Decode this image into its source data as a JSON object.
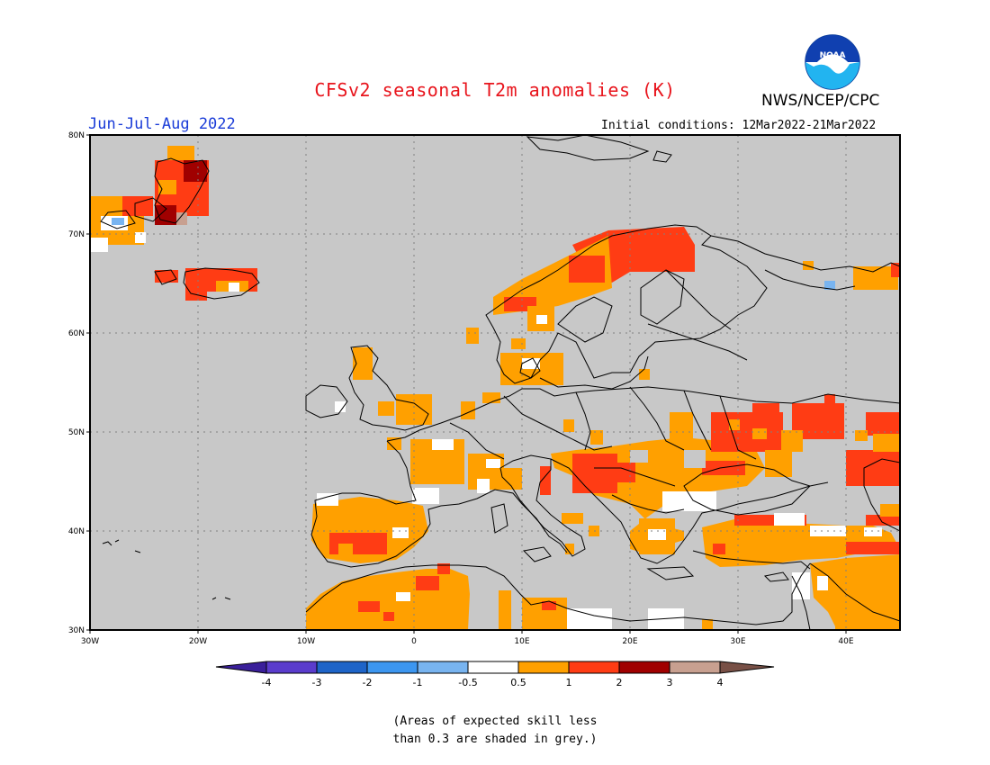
{
  "header": {
    "title": "CFSv2 seasonal T2m anomalies (K)",
    "agency": "NWS/NCEP/CPC",
    "season": "Jun-Jul-Aug 2022",
    "initial_conditions": "Initial conditions: 12Mar2022-21Mar2022",
    "logo_text": "NOAA"
  },
  "map": {
    "lon_range": [
      -30,
      45
    ],
    "lat_range": [
      30,
      80
    ],
    "lat_ticks": [
      "30N",
      "40N",
      "50N",
      "60N",
      "70N",
      "80N"
    ],
    "lon_ticks": [
      "30W",
      "20W",
      "10W",
      "0",
      "10E",
      "20E",
      "30E",
      "40E"
    ],
    "background_color": "#c8c8c8",
    "anomaly_regions": [
      {
        "name": "svalbard",
        "level": "1-2",
        "bbox_lonlat": [
          -24,
          70,
          -20,
          78
        ],
        "cells": [
          [
            -23,
            77,
            "#ff3c14"
          ],
          [
            -22,
            76,
            "#a00000"
          ],
          [
            -21,
            77,
            "#a00000"
          ],
          [
            -22,
            74,
            "#ff3c14"
          ],
          [
            -20,
            75,
            "#ff3c14"
          ],
          [
            -24,
            73,
            "#ffa000"
          ],
          [
            -21,
            72,
            "#ff3c14"
          ],
          [
            -20,
            71,
            "#a00000"
          ],
          [
            -23,
            72,
            "#ff3c14"
          ]
        ]
      },
      {
        "name": "east-greenland",
        "level": "0.5-1"
      },
      {
        "name": "iceland",
        "level": "1-2"
      },
      {
        "name": "scandinavia-north",
        "level": "1-2"
      },
      {
        "name": "iberia",
        "level": "0.5-1"
      },
      {
        "name": "north-africa",
        "level": "0.5-1"
      },
      {
        "name": "balkans",
        "level": "0.5-2"
      },
      {
        "name": "ukraine-russia",
        "level": "1-2"
      },
      {
        "name": "turkey",
        "level": "0.5-2"
      },
      {
        "name": "middle-east",
        "level": "0.5-1"
      }
    ]
  },
  "colorbar": {
    "labels": [
      "-4",
      "-3",
      "-2",
      "-1",
      "-0.5",
      "0.5",
      "1",
      "2",
      "3",
      "4"
    ],
    "colors": [
      "#3a1f9a",
      "#5a3ccc",
      "#1e64c8",
      "#3c96f0",
      "#78b4f0",
      "#ffffff",
      "#ffa000",
      "#ff3c14",
      "#a00000",
      "#c8a090",
      "#785046"
    ]
  },
  "footnote": {
    "line1": "(Areas of expected skill less",
    "line2": "than 0.3 are shaded in grey.)"
  }
}
